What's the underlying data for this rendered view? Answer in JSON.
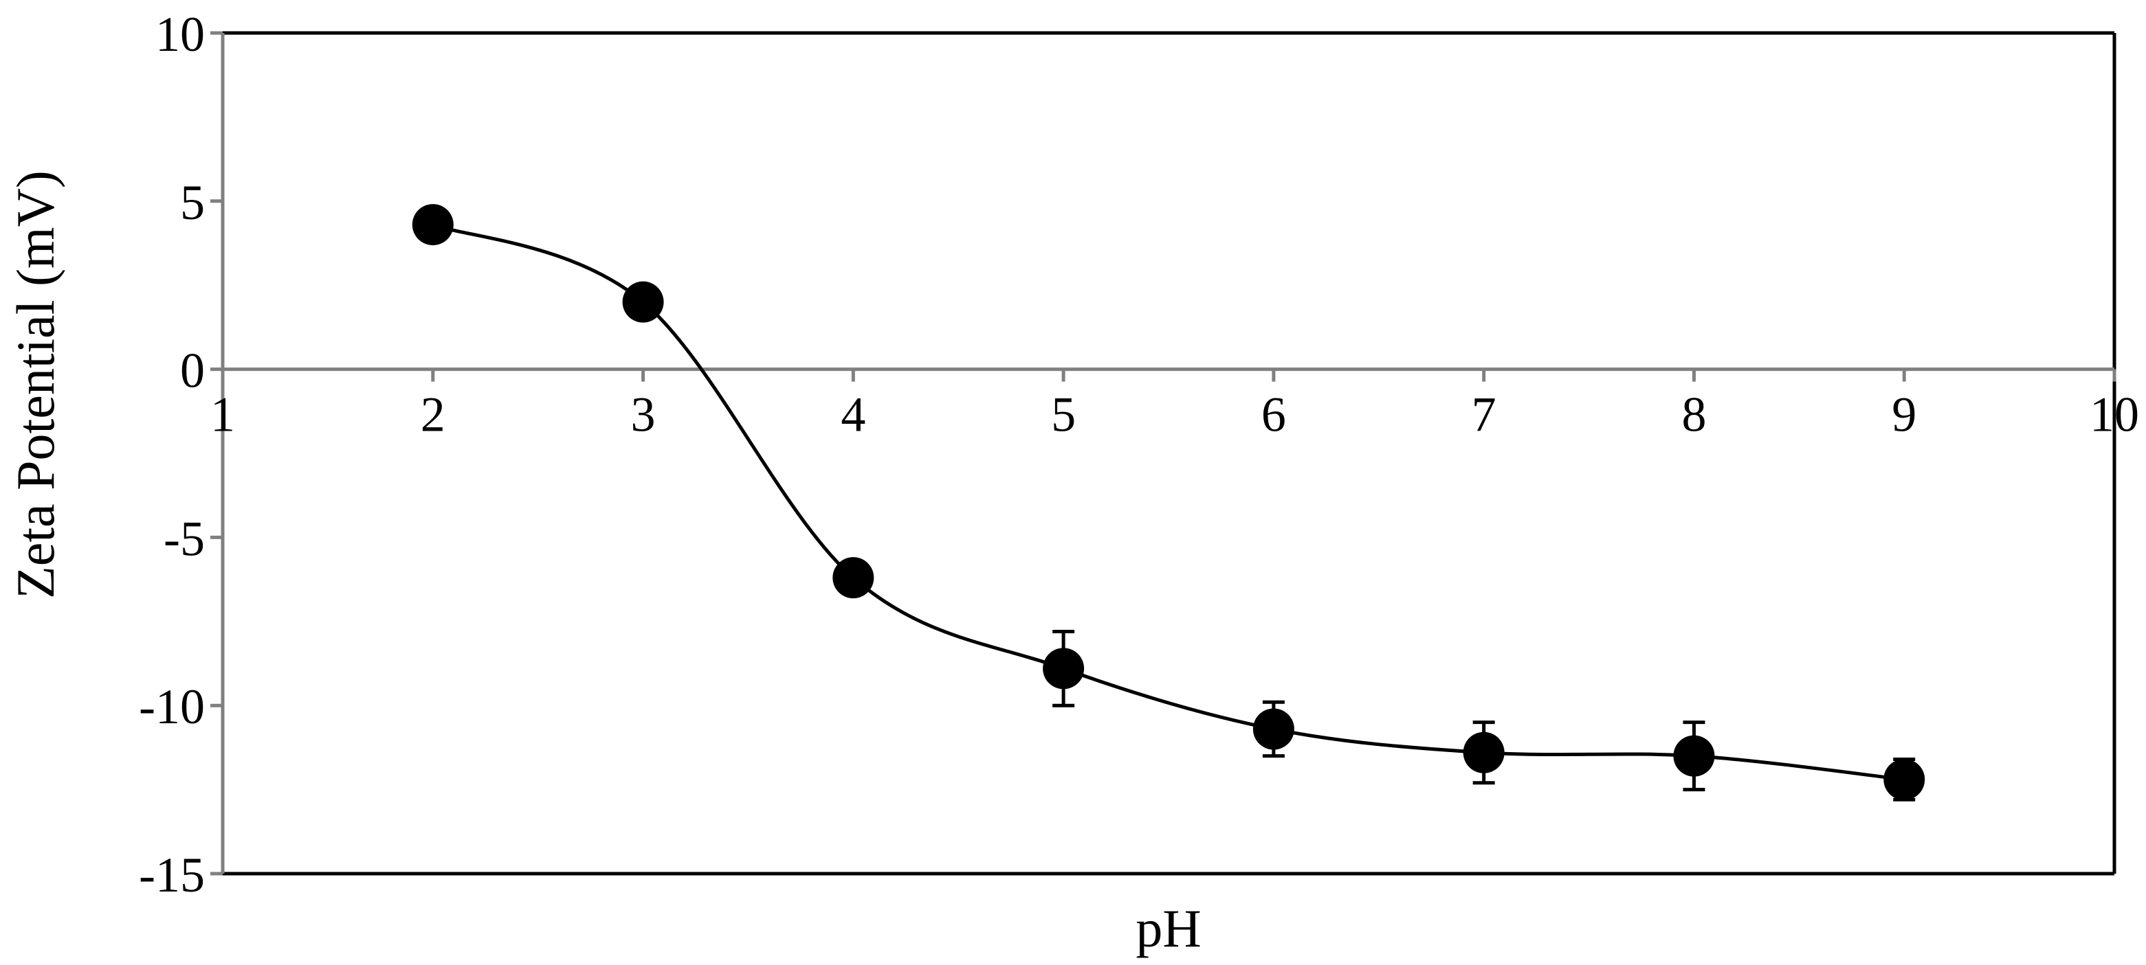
{
  "chart_data": {
    "type": "scatter",
    "xlabel": "pH",
    "ylabel": "Zeta Potential (mV)",
    "xlim": [
      1,
      10
    ],
    "ylim": [
      -15,
      10
    ],
    "x_ticks": [
      "1",
      "2",
      "3",
      "4",
      "5",
      "6",
      "7",
      "8",
      "9",
      "10"
    ],
    "y_ticks": [
      "10",
      "5",
      "0",
      "-5",
      "-10",
      "-15"
    ],
    "grid": false,
    "smoothed_line": true,
    "colors": {
      "series": "#000000",
      "frame": "#000000",
      "axis_gray": "#808080"
    },
    "series": [
      {
        "x": [
          2,
          3,
          4,
          5,
          6,
          7,
          8,
          9
        ],
        "y": [
          4.3,
          2.0,
          -6.2,
          -8.9,
          -10.7,
          -11.4,
          -11.5,
          -12.2
        ],
        "error": [
          0,
          0,
          0,
          1.1,
          0.8,
          0.9,
          1.0,
          0.6
        ]
      }
    ]
  }
}
